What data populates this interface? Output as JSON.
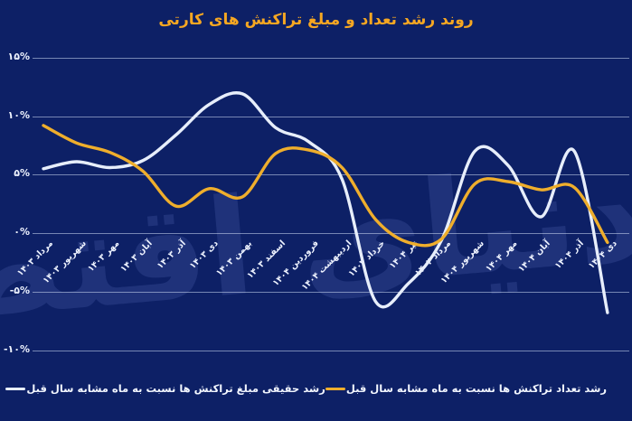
{
  "title": "روند رشد تعداد و مبلغ تراکنش های کارتی",
  "watermark": {
    "text": "دنیای اقتصاد"
  },
  "colors": {
    "background": "#0d2066",
    "title": "#f6a722",
    "gridline": "rgba(205,218,242,0.55)",
    "axis_text": "#eef3ff",
    "amount_line": "#e7eefb",
    "count_line": "#efae2c"
  },
  "y_axis": {
    "tick_labels": [
      "۱۵%",
      "۱۰%",
      "۵%",
      "۰%",
      "-۵%",
      "-۱۰%"
    ],
    "tick_values": [
      15,
      10,
      5,
      0,
      -5,
      -10
    ]
  },
  "chart_data": {
    "type": "line",
    "title": "روند رشد تعداد و مبلغ تراکنش های کارتی",
    "categories": [
      "مرداد ۱۴۰۳",
      "شهریور ۱۴۰۳",
      "مهر ۱۴۰۳",
      "آبان ۱۴۰۳",
      "آذر ۱۴۰۳",
      "دی ۱۴۰۳",
      "بهمن ۱۴۰۳",
      "اسفند ۱۴۰۳",
      "فروردین ۱۴۰۴",
      "اردیبهشت ۱۴۰۴",
      "خرداد ۱۴۰۴",
      "تیر ۱۴۰۴",
      "مرداد ۱۴۰۴",
      "شهریور ۱۴۰۴",
      "مهر ۱۴۰۴",
      "آبان ۱۴۰۴",
      "آذر ۱۴۰۴",
      "دی ۱۴۰۴"
    ],
    "series": [
      {
        "id": "amount-growth-line",
        "name": "رشد حقیقی مبلغ تراکنش ها نسبت به ماه مشابه سال قبل",
        "color": "#e7eefb",
        "values": [
          5.5,
          6.1,
          5.6,
          6.2,
          8.4,
          11.0,
          11.9,
          9.0,
          7.8,
          4.6,
          -5.8,
          -4.3,
          -0.6,
          7.0,
          5.8,
          1.4,
          7.0,
          -6.8
        ]
      },
      {
        "id": "count-growth-line",
        "name": "رشد تعداد تراکنش ها نسبت به ماه مشابه سال قبل",
        "color": "#efae2c",
        "values": [
          9.2,
          7.7,
          6.9,
          5.3,
          2.3,
          3.8,
          3.1,
          6.8,
          7.1,
          5.6,
          1.2,
          -0.8,
          -0.5,
          4.2,
          4.4,
          3.7,
          3.9,
          -0.8
        ]
      }
    ],
    "ylabel": "",
    "xlabel": "",
    "ylim": [
      -10,
      15
    ],
    "grid": true,
    "legend_position": "bottom",
    "units": "%"
  },
  "legend": [
    {
      "label": "رشد تعداد تراکنش ها نسبت به ماه مشابه سال قبل",
      "color": "#efae2c"
    },
    {
      "label": "رشد حقیقی مبلغ تراکنش ها نسبت به ماه مشابه سال قبل",
      "color": "#e7eefb"
    }
  ]
}
